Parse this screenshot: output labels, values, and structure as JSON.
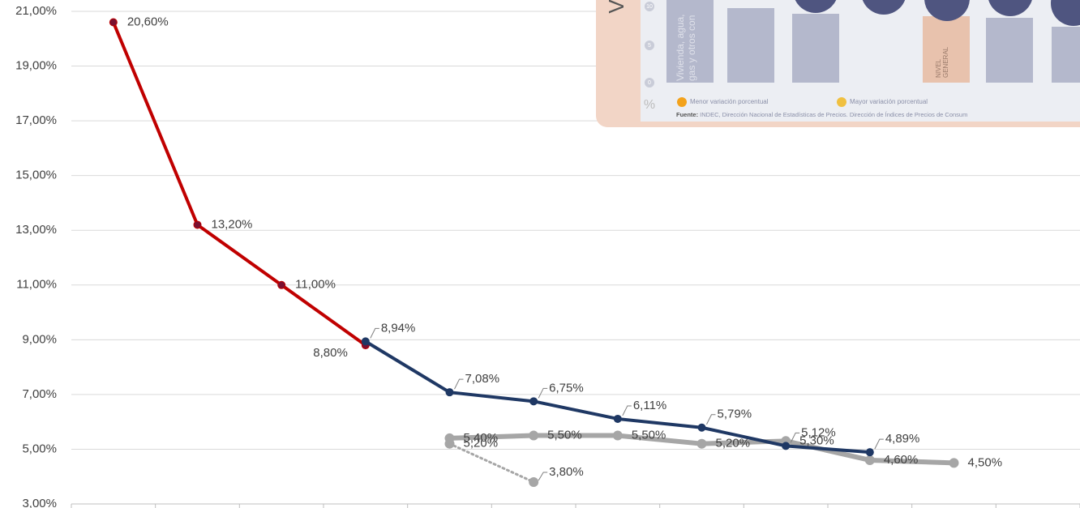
{
  "chart_data": {
    "type": "line",
    "categories": [
      null,
      null,
      null,
      null,
      null,
      null,
      null,
      null,
      null,
      null,
      null,
      null
    ],
    "ylim": [
      3,
      21
    ],
    "yticks": [
      {
        "value": 3,
        "label": "3,00%"
      },
      {
        "value": 5,
        "label": "5,00%"
      },
      {
        "value": 7,
        "label": "7,00%"
      },
      {
        "value": 9,
        "label": "9,00%"
      },
      {
        "value": 11,
        "label": "11,00%"
      },
      {
        "value": 13,
        "label": "13,00%"
      },
      {
        "value": 15,
        "label": "15,00%"
      },
      {
        "value": 17,
        "label": "17,00%"
      },
      {
        "value": 19,
        "label": "19,00%"
      },
      {
        "value": 21,
        "label": "21,00%"
      }
    ],
    "grid": true,
    "series": [
      {
        "color": "#a6a6a6",
        "line_style": "dotted",
        "values": [
          null,
          null,
          null,
          null,
          5.2,
          3.8,
          null,
          null,
          null,
          null,
          null,
          null
        ],
        "value_labels": [
          null,
          null,
          null,
          null,
          "5,20%",
          "3,80%",
          null,
          null,
          null,
          null,
          null,
          null
        ]
      },
      {
        "color": "#a6a6a6",
        "line_style": "solid",
        "values": [
          null,
          null,
          null,
          null,
          5.4,
          5.5,
          5.5,
          5.2,
          5.3,
          4.6,
          4.5,
          null
        ],
        "value_labels": [
          null,
          null,
          null,
          null,
          "5,40%",
          "5,50%",
          "5,50%",
          "5,20%",
          "5,30%",
          "4,60%",
          "4,50%",
          null
        ]
      },
      {
        "color": "#c00000",
        "line_style": "solid",
        "values": [
          20.6,
          13.2,
          11.0,
          8.8,
          null,
          null,
          null,
          null,
          null,
          null,
          null,
          null
        ],
        "value_labels": [
          "20,60%",
          "13,20%",
          "11,00%",
          "8,80%",
          null,
          null,
          null,
          null,
          null,
          null,
          null,
          null
        ]
      },
      {
        "color": "#1f3864",
        "line_style": "solid",
        "values": [
          null,
          null,
          null,
          8.94,
          7.08,
          6.75,
          6.11,
          5.79,
          5.12,
          4.89,
          null,
          null
        ],
        "value_labels": [
          null,
          null,
          null,
          "8,94%",
          "7,08%",
          "6,75%",
          "6,11%",
          "5,79%",
          "5,12%",
          "4,89%",
          null,
          null
        ]
      }
    ]
  },
  "inset": {
    "title_letter": "V",
    "axis_ticks": [
      "10",
      "5",
      "0"
    ],
    "axis_unit": "%",
    "bar_label": [
      "Vivienda, agua,",
      "gas y otros con"
    ],
    "highlight_label": [
      "NIVEL",
      "GENERAL"
    ],
    "legend": [
      "Menor variación porcentual",
      "Mayor variación porcentual"
    ],
    "source_bold": "Fuente:",
    "source": " INDEC, Dirección Nacional de Estadísticas de Precios. Dirección de Índices de Precios de Consum"
  }
}
